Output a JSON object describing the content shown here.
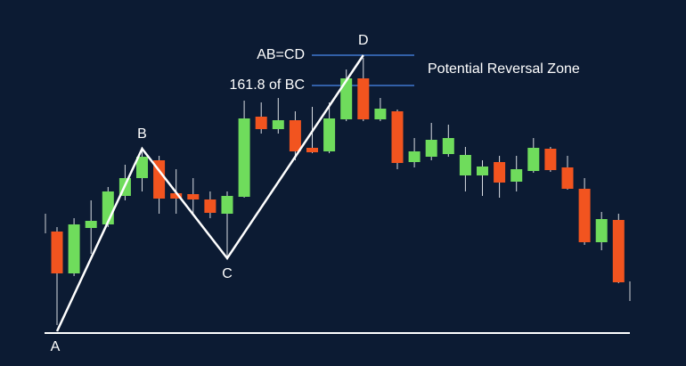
{
  "chart_data": {
    "type": "candlestick",
    "up_color": "#6fdc5c",
    "down_color": "#f2541f",
    "open": [
      114,
      67,
      118,
      122,
      154,
      174,
      194,
      157,
      156,
      150,
      134,
      153,
      243,
      229,
      239,
      208,
      204,
      240,
      286,
      240,
      249,
      192,
      198,
      201,
      177,
      177,
      192,
      170,
      182,
      207,
      186,
      162,
      102,
      127
    ],
    "close": [
      67,
      122,
      126,
      159,
      174,
      198,
      151,
      151,
      150,
      135,
      154,
      241,
      229,
      239,
      204,
      203,
      241,
      286,
      240,
      252,
      191,
      204,
      217,
      219,
      200,
      187,
      169,
      184,
      208,
      183,
      162,
      102,
      128,
      57
    ],
    "high": [
      119,
      129,
      149,
      164,
      189,
      209,
      199,
      184,
      174,
      159,
      159,
      261,
      259,
      264,
      249,
      254,
      259,
      296,
      309,
      264,
      251,
      219,
      236,
      234,
      209,
      194,
      199,
      199,
      219,
      209,
      199,
      174,
      136,
      134
    ],
    "low": [
      9,
      64,
      89,
      119,
      149,
      159,
      134,
      134,
      134,
      129,
      84,
      152,
      224,
      224,
      194,
      202,
      202,
      238,
      238,
      238,
      184,
      186,
      194,
      198,
      159,
      154,
      152,
      159,
      180,
      181,
      161,
      99,
      93,
      56
    ],
    "pattern": {
      "color": "#ffffff",
      "points": [
        {
          "label": "A",
          "index": 0,
          "value": 2
        },
        {
          "label": "B",
          "index": 5,
          "value": 207
        },
        {
          "label": "C",
          "index": 10,
          "value": 84
        },
        {
          "label": "D",
          "index": 18,
          "value": 312
        }
      ]
    },
    "reference_lines": [
      {
        "label": "AB=CD",
        "value": 312
      },
      {
        "label": "161.8 of BC",
        "value": 278
      }
    ],
    "reference_color": "#3f78d0",
    "annotation": "Potential Reversal Zone"
  }
}
